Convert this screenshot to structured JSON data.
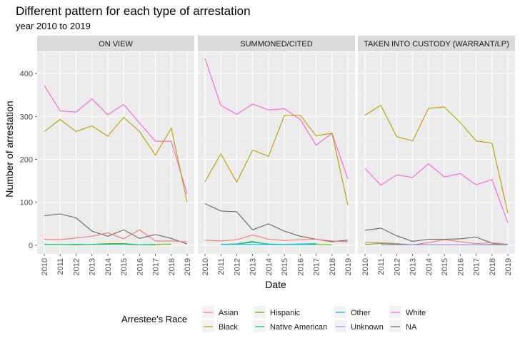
{
  "chart_data": {
    "type": "line",
    "title": "Different pattern for each type of arrestation",
    "subtitle": "year 2010 to 2019",
    "xlabel": "Date",
    "ylabel": "Number of arrestation",
    "x": [
      2010,
      2011,
      2012,
      2013,
      2014,
      2015,
      2016,
      2017,
      2018,
      2019
    ],
    "y_ticks": [
      0,
      100,
      200,
      300,
      400
    ],
    "ylim": [
      -20,
      450
    ],
    "grid": true,
    "legend": {
      "title": "Arrestee's Race",
      "position": "bottom",
      "entries": [
        {
          "name": "Asian",
          "color": "#F8766D"
        },
        {
          "name": "Black",
          "color": "#B79F00"
        },
        {
          "name": "Hispanic",
          "color": "#53B400"
        },
        {
          "name": "Native American",
          "color": "#00C094"
        },
        {
          "name": "Other",
          "color": "#00B6EB"
        },
        {
          "name": "Unknown",
          "color": "#A58AFF"
        },
        {
          "name": "White",
          "color": "#FB61D7"
        },
        {
          "name": "NA",
          "color": "#666666"
        }
      ]
    },
    "panels": [
      {
        "label": "ON VIEW",
        "series": [
          {
            "name": "White",
            "color": "#FB61D7",
            "values": [
              372,
              313,
              310,
              341,
              304,
              328,
              285,
              242,
              242,
              120
            ]
          },
          {
            "name": "Black",
            "color": "#B79F00",
            "values": [
              265,
              293,
              265,
              278,
              254,
              298,
              265,
              210,
              273,
              100
            ]
          },
          {
            "name": "NA",
            "color": "#666666",
            "values": [
              69,
              73,
              64,
              33,
              21,
              36,
              16,
              25,
              16,
              3
            ]
          },
          {
            "name": "Asian",
            "color": "#F8766D",
            "values": [
              14,
              13,
              17,
              21,
              29,
              15,
              36,
              10,
              10,
              8
            ]
          },
          {
            "name": "Hispanic",
            "color": "#53B400",
            "values": [
              2,
              2,
              1,
              2,
              4,
              4,
              1,
              2,
              3,
              null
            ]
          },
          {
            "name": "Native American",
            "color": "#00C094",
            "values": [
              2,
              2,
              2,
              2,
              2,
              2,
              1,
              1,
              null,
              null
            ]
          }
        ]
      },
      {
        "label": "SUMMONED/CITED",
        "series": [
          {
            "name": "White",
            "color": "#FB61D7",
            "values": [
              435,
              326,
              305,
              329,
              315,
              318,
              293,
              233,
              261,
              155
            ]
          },
          {
            "name": "Black",
            "color": "#B79F00",
            "values": [
              148,
              213,
              147,
              222,
              207,
              302,
              303,
              255,
              261,
              94
            ]
          },
          {
            "name": "NA",
            "color": "#666666",
            "values": [
              97,
              80,
              78,
              36,
              50,
              33,
              21,
              14,
              8,
              12
            ]
          },
          {
            "name": "Asian",
            "color": "#F8766D",
            "values": [
              12,
              10,
              13,
              24,
              14,
              11,
              13,
              14,
              10,
              8
            ]
          },
          {
            "name": "Hispanic",
            "color": "#53B400",
            "values": [
              null,
              2,
              3,
              9,
              2,
              2,
              2,
              2,
              1,
              null
            ]
          },
          {
            "name": "Native American",
            "color": "#00C094",
            "values": [
              null,
              2,
              3,
              7,
              3,
              2,
              2,
              2,
              null,
              null
            ]
          },
          {
            "name": "Other",
            "color": "#00B6EB",
            "values": [
              null,
              2,
              2,
              2,
              2,
              2,
              3,
              4,
              null,
              null
            ]
          }
        ]
      },
      {
        "label": "TAKEN INTO CUSTODY (WARRANT/LP)",
        "series": [
          {
            "name": "Black",
            "color": "#B79F00",
            "values": [
              303,
              326,
              253,
              243,
              319,
              322,
              286,
              243,
              238,
              75
            ]
          },
          {
            "name": "White",
            "color": "#FB61D7",
            "values": [
              179,
              140,
              164,
              158,
              190,
              159,
              167,
              141,
              153,
              52
            ]
          },
          {
            "name": "NA",
            "color": "#666666",
            "values": [
              35,
              40,
              22,
              9,
              14,
              14,
              15,
              19,
              5,
              2
            ]
          },
          {
            "name": "Asian",
            "color": "#F8766D",
            "values": [
              6,
              6,
              4,
              1,
              6,
              13,
              8,
              4,
              6,
              2
            ]
          },
          {
            "name": "Hispanic",
            "color": "#53B400",
            "values": [
              2,
              4,
              3,
              1,
              1,
              1,
              1,
              1,
              1,
              1
            ]
          },
          {
            "name": "Other",
            "color": "#00B6EB",
            "values": [
              null,
              1,
              1,
              1,
              1,
              1,
              1,
              1,
              2,
              2
            ]
          },
          {
            "name": "Unknown",
            "color": "#A58AFF",
            "values": [
              null,
              1,
              1,
              1,
              1,
              1,
              1,
              1,
              2,
              2
            ]
          }
        ]
      }
    ]
  }
}
